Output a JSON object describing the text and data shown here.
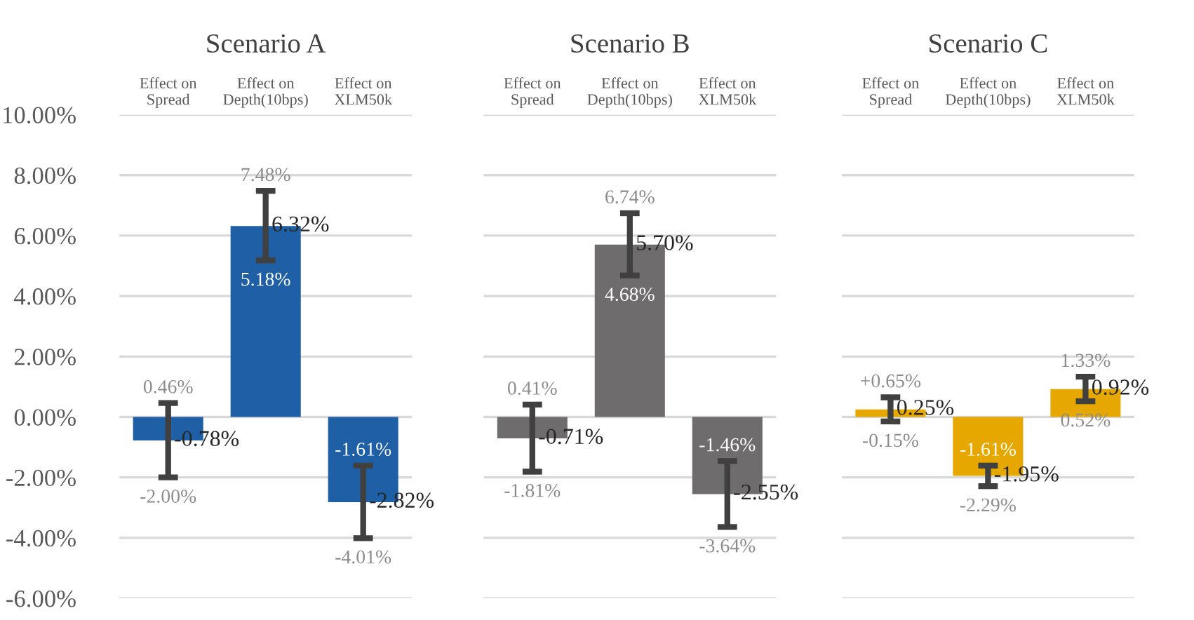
{
  "chart_data": [
    {
      "type": "bar",
      "title": "Scenario A",
      "categories": [
        "Effect on\nSpread",
        "Effect on\nDepth(10bps)",
        "Effect on\nXLM50k"
      ],
      "values": [
        -0.78,
        6.32,
        -2.82
      ],
      "value_labels": [
        "-0.78%",
        "6.32%",
        "-2.82%"
      ],
      "color": "#1f5fa6",
      "errors": [
        [
          -2.0,
          0.46
        ],
        [
          5.18,
          7.48
        ],
        [
          -4.01,
          -1.61
        ]
      ],
      "annotations": [
        {
          "text": "0.46%",
          "x": "Effect on\nSpread",
          "y": 0.46
        },
        {
          "text": "-2.00%",
          "x": "Effect on\nSpread",
          "y": -2.0
        },
        {
          "text": "7.48%",
          "x": "Effect on\nDepth(10bps)",
          "y": 7.48
        },
        {
          "text": "5.18%",
          "x": "Effect on\nDepth(10bps)",
          "y": 5.18
        },
        {
          "text": "-1.61%",
          "x": "Effect on\nXLM50k",
          "y": -1.61
        },
        {
          "text": "-4.01%",
          "x": "Effect on\nXLM50k",
          "y": -4.01
        }
      ],
      "ylim": [
        -6,
        10
      ],
      "yticks": [
        {
          "value": -6,
          "label": "-6.00%"
        },
        {
          "value": -4,
          "label": "-4.00%"
        },
        {
          "value": -2,
          "label": "-2.00%"
        },
        {
          "value": 0,
          "label": "0.00%"
        },
        {
          "value": 2,
          "label": "2.00%"
        },
        {
          "value": 4,
          "label": "4.00%"
        },
        {
          "value": 6,
          "label": "6.00%"
        },
        {
          "value": 8,
          "label": "8.00%"
        },
        {
          "value": 10,
          "label": "10.00%"
        }
      ],
      "grid": "y"
    },
    {
      "type": "bar",
      "title": "Scenario B",
      "categories": [
        "Effect on\nSpread",
        "Effect on\nDepth(10bps)",
        "Effect on\nXLM50k"
      ],
      "values": [
        -0.71,
        5.7,
        -2.55
      ],
      "value_labels": [
        "-0.71%",
        "5.70%",
        "-2.55%"
      ],
      "color": "#6e6c6c",
      "errors": [
        [
          -1.81,
          0.41
        ],
        [
          4.68,
          6.74
        ],
        [
          -3.64,
          -1.46
        ]
      ],
      "annotations": [
        {
          "text": "0.41%",
          "x": "Effect on\nSpread",
          "y": 0.41
        },
        {
          "text": "-1.81%",
          "x": "Effect on\nSpread",
          "y": -1.81
        },
        {
          "text": "6.74%",
          "x": "Effect on\nDepth(10bps)",
          "y": 6.74
        },
        {
          "text": "4.68%",
          "x": "Effect on\nDepth(10bps)",
          "y": 4.68
        },
        {
          "text": "-1.46%",
          "x": "Effect on\nXLM50k",
          "y": -1.46
        },
        {
          "text": "-3.64%",
          "x": "Effect on\nXLM50k",
          "y": -3.64
        }
      ],
      "ylim": [
        -6,
        10
      ],
      "yticks": [
        -6,
        -4,
        -2,
        0,
        2,
        4,
        6,
        8,
        10
      ],
      "grid": "y",
      "tick_labels": "x"
    },
    {
      "type": "bar",
      "title": "Scenario C",
      "categories": [
        "Effect on\nSpread",
        "Effect on\nDepth(10bps)",
        "Effect on\nXLM50k"
      ],
      "values": [
        0.25,
        -1.95,
        0.92
      ],
      "value_labels": [
        "0.25%",
        "-1.95%",
        "0.92%"
      ],
      "color": "#e6a800",
      "errors": [
        [
          -0.15,
          0.65
        ],
        [
          -2.29,
          -1.61
        ],
        [
          0.52,
          1.33
        ]
      ],
      "annotations": [
        {
          "text": "+0.65%",
          "x": "Effect on\nSpread",
          "y": 0.65
        },
        {
          "text": "-0.15%",
          "x": "Effect on\nSpread",
          "y": -0.15
        },
        {
          "text": "-1.61%",
          "x": "Effect on\nDepth(10bps)",
          "y": -1.61
        },
        {
          "text": "-2.29%",
          "x": "Effect on\nDepth(10bps)",
          "y": -2.29
        },
        {
          "text": "1.33%",
          "x": "Effect on\nXLM50k",
          "y": 1.33
        },
        {
          "text": "0.52%",
          "x": "Effect on\nXLM50k",
          "y": 0.52
        }
      ],
      "ylim": [
        -6,
        10
      ],
      "yticks": [
        -6,
        -4,
        -2,
        0,
        2,
        4,
        6,
        8,
        10
      ],
      "grid": "y",
      "tick_labels": "x"
    }
  ]
}
